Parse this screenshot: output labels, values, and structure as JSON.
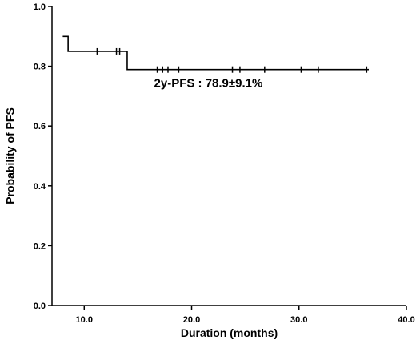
{
  "chart_data": {
    "type": "line",
    "title": "",
    "xlabel": "Duration (months)",
    "ylabel": "Probability of PFS",
    "xlim": [
      7.0,
      40.0
    ],
    "ylim": [
      0.0,
      1.0
    ],
    "x_ticks": [
      10.0,
      20.0,
      30.0,
      40.0
    ],
    "x_tick_labels": [
      "10.0",
      "20.0",
      "30.0",
      "40.0"
    ],
    "y_ticks": [
      0.0,
      0.2,
      0.4,
      0.6,
      0.8,
      1.0
    ],
    "y_tick_labels": [
      "0.0",
      "0.2",
      "0.4",
      "0.6",
      "0.8",
      "1.0"
    ],
    "grid": false,
    "series": [
      {
        "steps": [
          {
            "x": 8.0,
            "y": 0.9
          },
          {
            "x": 8.5,
            "y": 0.85
          },
          {
            "x": 14.0,
            "y": 0.789
          },
          {
            "x": 36.5,
            "y": 0.789
          }
        ],
        "censored": [
          {
            "x": 11.2,
            "y": 0.85
          },
          {
            "x": 13.0,
            "y": 0.85
          },
          {
            "x": 13.3,
            "y": 0.85
          },
          {
            "x": 16.8,
            "y": 0.789
          },
          {
            "x": 17.3,
            "y": 0.789
          },
          {
            "x": 17.8,
            "y": 0.789
          },
          {
            "x": 18.8,
            "y": 0.789
          },
          {
            "x": 23.8,
            "y": 0.789
          },
          {
            "x": 24.5,
            "y": 0.789
          },
          {
            "x": 26.8,
            "y": 0.789
          },
          {
            "x": 30.2,
            "y": 0.789
          },
          {
            "x": 31.8,
            "y": 0.789
          },
          {
            "x": 36.3,
            "y": 0.789
          }
        ]
      }
    ],
    "annotations": [
      {
        "text": "2y-PFS : 78.9±9.1%",
        "x": 16.5,
        "y": 0.73
      }
    ]
  }
}
